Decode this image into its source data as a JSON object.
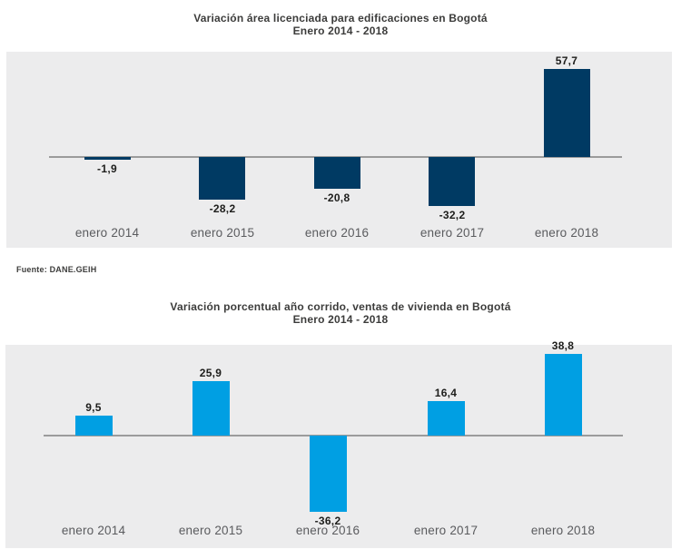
{
  "source_note": "Fuente: DANE.GEIH",
  "colors": {
    "panel_background": "#ececed",
    "axis_line": "#9b9b9b",
    "dark_navy_bar": "#003a63",
    "light_blue_bar": "#009fe3",
    "title_text": "#3c3c3b",
    "value_label_text": "#1d1d1b",
    "tick_label_text": "#5a5b5e"
  },
  "chart_data": [
    {
      "type": "bar",
      "title": "Variación área licenciada para edificaciones en Bogotá",
      "subtitle": "Enero 2014 - 2018",
      "categories": [
        "enero 2014",
        "enero 2015",
        "enero 2016",
        "enero 2017",
        "enero 2018"
      ],
      "values": [
        -1.9,
        -28.2,
        -20.8,
        -32.2,
        57.7
      ],
      "value_labels": [
        "-1,9",
        "-28,2",
        "-20,8",
        "-32,2",
        "57,7"
      ],
      "bar_color": "#003a63",
      "ylim": [
        -40,
        65
      ],
      "grid": false,
      "legend": "none",
      "xlabel": "",
      "ylabel": ""
    },
    {
      "type": "bar",
      "title": "Variación porcentual año corrido, ventas de vivienda en Bogotá",
      "subtitle": "Enero 2014 - 2018",
      "categories": [
        "enero 2014",
        "enero 2015",
        "enero 2016",
        "enero 2017",
        "enero 2018"
      ],
      "values": [
        9.5,
        25.9,
        -36.2,
        16.4,
        38.8
      ],
      "value_labels": [
        "9,5",
        "25,9",
        "-36,2",
        "16,4",
        "38,8"
      ],
      "bar_color": "#009fe3",
      "ylim": [
        -45,
        45
      ],
      "grid": false,
      "legend": "none",
      "xlabel": "",
      "ylabel": ""
    }
  ]
}
